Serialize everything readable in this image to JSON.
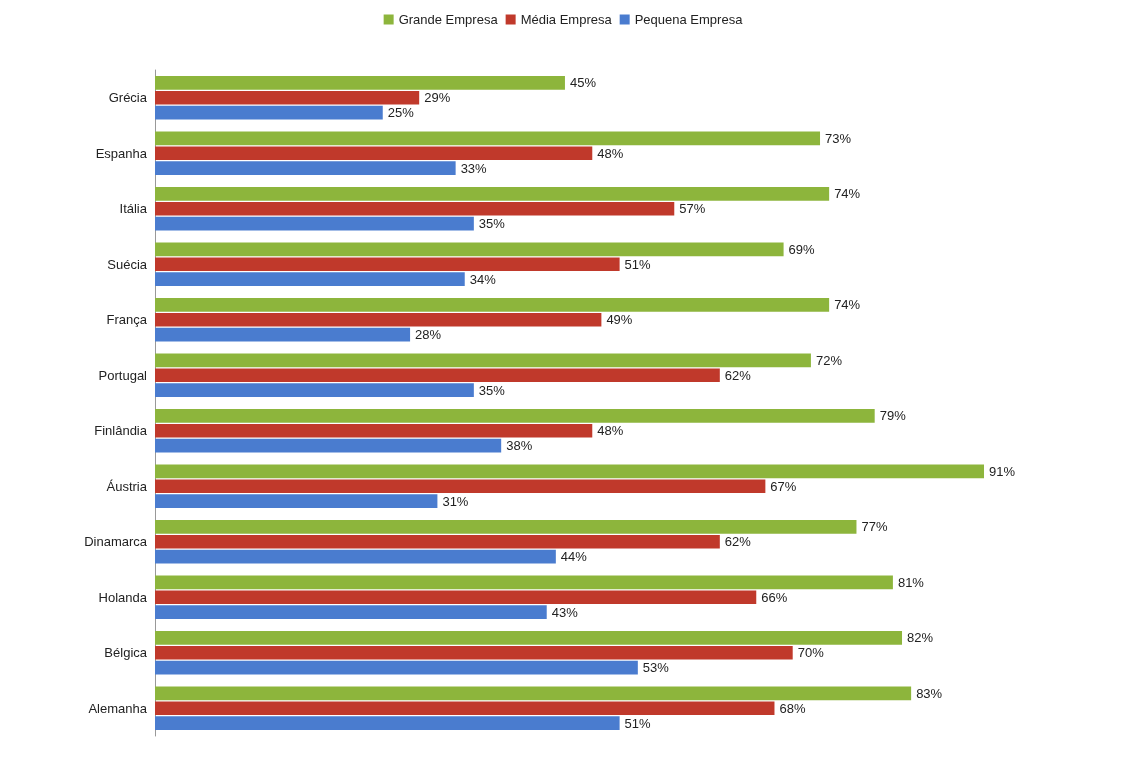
{
  "chart_data": {
    "type": "bar",
    "orientation": "horizontal",
    "legend": "top",
    "categories": [
      "Grécia",
      "Espanha",
      "Itália",
      "Suécia",
      "França",
      "Portugal",
      "Finlândia",
      "Áustria",
      "Dinamarca",
      "Holanda",
      "Bélgica",
      "Alemanha"
    ],
    "series": [
      {
        "name": "Grande Empresa",
        "color": "#8db53c",
        "values": [
          45,
          73,
          74,
          69,
          74,
          72,
          79,
          91,
          77,
          81,
          82,
          83
        ],
        "value_labels": [
          "45%",
          "73%",
          "74%",
          "69%",
          "74%",
          "72%",
          "79%",
          "91%",
          "77%",
          "81%",
          "82%",
          "83%"
        ]
      },
      {
        "name": "Média Empresa",
        "color": "#c0392b",
        "values": [
          29,
          48,
          57,
          51,
          49,
          62,
          48,
          67,
          62,
          66,
          70,
          68
        ],
        "value_labels": [
          "29%",
          "48%",
          "57%",
          "51%",
          "49%",
          "62%",
          "48%",
          "67%",
          "62%",
          "66%",
          "70%",
          "68%"
        ]
      },
      {
        "name": "Pequena Empresa",
        "color": "#4a7ccf",
        "values": [
          25,
          33,
          35,
          34,
          28,
          35,
          38,
          31,
          44,
          43,
          53,
          51
        ],
        "value_labels": [
          "25%",
          "33%",
          "35%",
          "34%",
          "28%",
          "35%",
          "38%",
          "31%",
          "44%",
          "43%",
          "53%",
          "51%"
        ]
      }
    ]
  }
}
